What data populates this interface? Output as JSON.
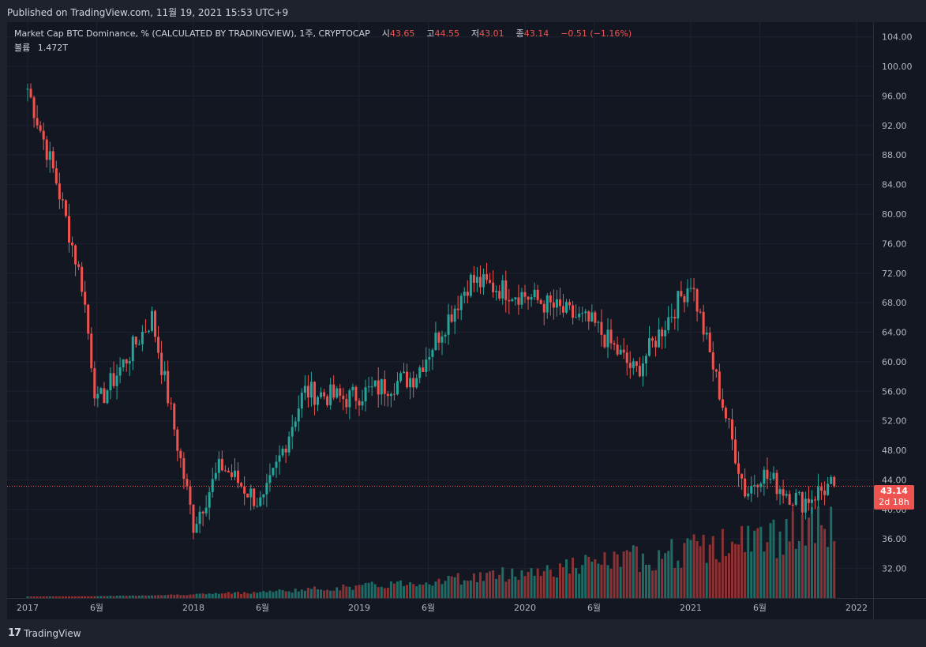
{
  "published": "Published on TradingView.com, 11월 19, 2021 15:53 UTC+9",
  "legend": {
    "title": "Market Cap BTC Dominance, % (CALCULATED BY TRADINGVIEW), 1주, CRYPTOCAP",
    "open_label": "시",
    "open": "43.65",
    "high_label": "고",
    "high": "44.55",
    "low_label": "저",
    "low": "43.01",
    "close_label": "종",
    "close": "43.14",
    "change": "−0.51 (−1.16%)",
    "volume_label": "볼륨",
    "volume": "1.472T"
  },
  "price_tag": {
    "price": "43.14",
    "countdown": "2d 18h"
  },
  "footer": {
    "brand": "TradingView",
    "logo": "17"
  },
  "colors": {
    "up": "#26a69a",
    "down": "#ef5350",
    "up_volume": "#1f6b66",
    "down_volume": "#8b3234",
    "grid": "#1e2230",
    "background": "#131722"
  },
  "chart_data": {
    "type": "candlestick",
    "series": [
      {
        "name": "BTC Dominance",
        "unit": "%",
        "interval": "1주"
      }
    ],
    "ylim": [
      28,
      106
    ],
    "yticks": [
      32,
      36,
      40,
      44,
      48,
      52,
      56,
      60,
      64,
      68,
      72,
      76,
      80,
      84,
      88,
      92,
      96,
      100,
      104
    ],
    "ytick_labels": [
      "32.00",
      "36.00",
      "40.00",
      "44.00",
      "48.00",
      "52.00",
      "56.00",
      "60.00",
      "64.00",
      "68.00",
      "72.00",
      "76.00",
      "80.00",
      "84.00",
      "88.00",
      "92.00",
      "96.00",
      "100.00",
      "104.00"
    ],
    "xticks": [
      "2017",
      "6월",
      "2018",
      "6월",
      "2019",
      "6월",
      "2020",
      "6월",
      "2021",
      "6월",
      "2022"
    ],
    "xtick_dates": [
      "2017-01",
      "2017-06",
      "2018-01",
      "2018-06",
      "2019-01",
      "2019-06",
      "2020-01",
      "2020-06",
      "2021-01",
      "2021-06",
      "2022-01"
    ],
    "last_close": 43.14,
    "key_points": [
      {
        "date": "2017-01",
        "close": 97.0
      },
      {
        "date": "2017-03",
        "close": 85.0
      },
      {
        "date": "2017-05",
        "close": 70.0
      },
      {
        "date": "2017-06",
        "close": 54.0
      },
      {
        "date": "2017-10",
        "close": 66.0
      },
      {
        "date": "2018-01",
        "close": 38.0
      },
      {
        "date": "2018-03",
        "close": 46.0
      },
      {
        "date": "2018-06",
        "close": 40.5
      },
      {
        "date": "2018-09",
        "close": 56.0
      },
      {
        "date": "2018-12",
        "close": 55.0
      },
      {
        "date": "2019-05",
        "close": 58.0
      },
      {
        "date": "2019-09",
        "close": 71.0
      },
      {
        "date": "2020-01",
        "close": 69.0
      },
      {
        "date": "2020-06",
        "close": 65.0
      },
      {
        "date": "2020-09",
        "close": 58.5
      },
      {
        "date": "2021-01",
        "close": 71.0
      },
      {
        "date": "2021-05",
        "close": 42.0
      },
      {
        "date": "2021-06",
        "close": 45.0
      },
      {
        "date": "2021-09",
        "close": 41.0
      },
      {
        "date": "2021-11",
        "close": 43.14
      }
    ]
  }
}
